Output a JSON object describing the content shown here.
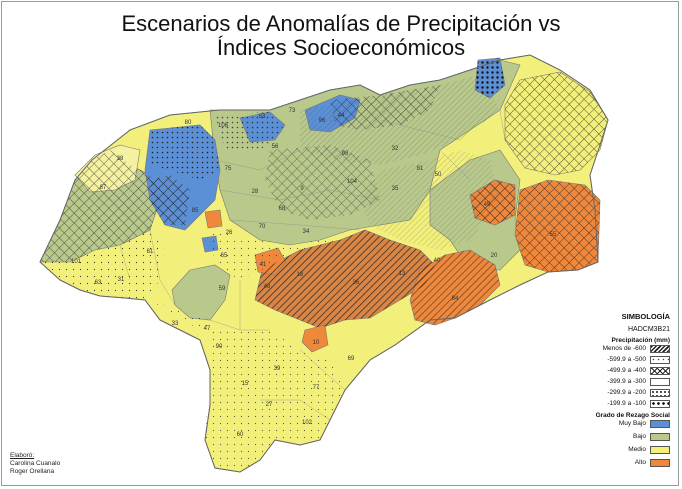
{
  "title": {
    "line1": "Escenarios de Anomalías de Precipitación vs",
    "line2": "Índices Socioeconómicos"
  },
  "legend": {
    "heading": "SIMBOLOGÍA",
    "model": "HADCM3B21",
    "precip_heading": "Precipitación (mm)",
    "precip_items": [
      {
        "label": "Menos de -600",
        "pattern": "diagonal-hatch-dense"
      },
      {
        "label": "-599.9 a -500",
        "pattern": "sparse-dots"
      },
      {
        "label": "-499.9 a -400",
        "pattern": "crosshatch"
      },
      {
        "label": "-399.9 a -300",
        "pattern": "none"
      },
      {
        "label": "-299.9 a -200",
        "pattern": "medium-dots"
      },
      {
        "label": "-199.9 a -100",
        "pattern": "large-dots"
      }
    ],
    "social_heading": "Grado de Rezago Social",
    "social_items": [
      {
        "label": "Muy Bajo",
        "color": "#5b8fd6"
      },
      {
        "label": "Bajo",
        "color": "#b9c98c"
      },
      {
        "label": "Medio",
        "color": "#f2f07a"
      },
      {
        "label": "Alto",
        "color": "#f0883c"
      }
    ]
  },
  "credits": {
    "heading": "Elaboró:",
    "author1": "Carolina Cuanalo",
    "author2": "Roger Orellana"
  },
  "map_labels": [
    "38",
    "87",
    "106",
    "73",
    "44",
    "80",
    "75",
    "53",
    "96",
    "56",
    "98",
    "32",
    "81",
    "35",
    "9",
    "50",
    "104",
    "28",
    "68",
    "85",
    "26",
    "70",
    "34",
    "65",
    "41",
    "59",
    "48",
    "18",
    "36",
    "40",
    "45",
    "20",
    "84",
    "13",
    "55",
    "10",
    "69",
    "90",
    "15",
    "39",
    "77",
    "27",
    "102",
    "60",
    "47",
    "33",
    "63",
    "101",
    "61",
    "31"
  ]
}
